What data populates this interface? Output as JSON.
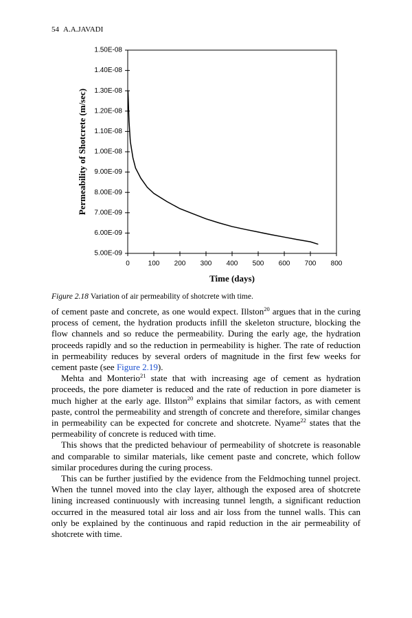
{
  "header": {
    "page": "54",
    "author": "A.A.JAVADI"
  },
  "chart_data": {
    "type": "line",
    "xlabel": "Time (days)",
    "ylabel": "Permeability of Shotcrete (m/sec)",
    "x": [
      1,
      5,
      10,
      20,
      30,
      50,
      75,
      100,
      150,
      200,
      250,
      300,
      350,
      400,
      450,
      500,
      550,
      600,
      650,
      700,
      730
    ],
    "series": [
      {
        "color": "#000000",
        "values": [
          1.3e-08,
          1.15e-08,
          1.05e-08,
          9.7e-09,
          9.2e-09,
          8.7e-09,
          8.25e-09,
          7.95e-09,
          7.55e-09,
          7.2e-09,
          6.95e-09,
          6.7e-09,
          6.5e-09,
          6.32e-09,
          6.18e-09,
          6.05e-09,
          5.92e-09,
          5.8e-09,
          5.68e-09,
          5.57e-09,
          5.45e-09
        ]
      }
    ],
    "xlim": [
      0,
      800
    ],
    "xticks": [
      0,
      100,
      200,
      300,
      400,
      500,
      600,
      700,
      800
    ],
    "ylim": [
      5e-09,
      1.5e-08
    ],
    "yticks": [
      {
        "value": 5e-09,
        "label": "5.00E-09"
      },
      {
        "value": 6e-09,
        "label": "6.00E-09"
      },
      {
        "value": 7e-09,
        "label": "7.00E-09"
      },
      {
        "value": 8e-09,
        "label": "8.00E-09"
      },
      {
        "value": 9e-09,
        "label": "9.00E-09"
      },
      {
        "value": 1e-08,
        "label": "1.00E-08"
      },
      {
        "value": 1.1e-08,
        "label": "1.10E-08"
      },
      {
        "value": 1.2e-08,
        "label": "1.20E-08"
      },
      {
        "value": 1.3e-08,
        "label": "1.30E-08"
      },
      {
        "value": 1.4e-08,
        "label": "1.40E-08"
      },
      {
        "value": 1.5e-08,
        "label": "1.50E-08"
      }
    ],
    "grid": false
  },
  "caption": {
    "label": "Figure 2.18",
    "text": "Variation of air permeability of shotcrete with time."
  },
  "paragraphs": [
    [
      {
        "text": "of cement paste and concrete, as one would expect. Illston"
      },
      {
        "text": "20",
        "style": "sup"
      },
      {
        "text": " argues that in the curing process of cement, the hydration products infill the skeleton structure, blocking the flow channels and so reduce the permeability. During the early age, the hydration proceeds rapidly and so the reduction in permeability is higher. The rate of reduction in permeability reduces by several orders of magnitude in the first few weeks for cement paste (see "
      },
      {
        "text": "Figure 2.19",
        "style": "link"
      },
      {
        "text": ")."
      }
    ],
    [
      {
        "text": "Mehta and Monterio"
      },
      {
        "text": "21",
        "style": "sup"
      },
      {
        "text": " state that with increasing age of cement as hydration proceeds, the pore diameter is reduced and the rate of reduction in pore diameter is much higher at the early age. Illston"
      },
      {
        "text": "20",
        "style": "sup"
      },
      {
        "text": " explains that similar factors, as with cement paste, control the permeability and strength of concrete and therefore, similar changes in permeability can be expected for concrete and shotcrete. Nyame"
      },
      {
        "text": "22",
        "style": "sup"
      },
      {
        "text": " states that the permeability of concrete is reduced with time."
      }
    ],
    [
      {
        "text": "This shows that the predicted behaviour of permeability of shotcrete is reasonable and comparable to similar materials, like cement paste and concrete, which follow similar procedures during the curing process."
      }
    ],
    [
      {
        "text": "This can be further justified by the evidence from the Feldmoching tunnel project. When the tunnel moved into the clay layer, although the exposed area of shotcrete lining increased continuously with increasing tunnel length, a significant reduction occurred in the measured total air loss and air loss from the tunnel walls. This can only be explained by the continuous and rapid reduction in the air permeability of shotcrete with time."
      }
    ]
  ]
}
